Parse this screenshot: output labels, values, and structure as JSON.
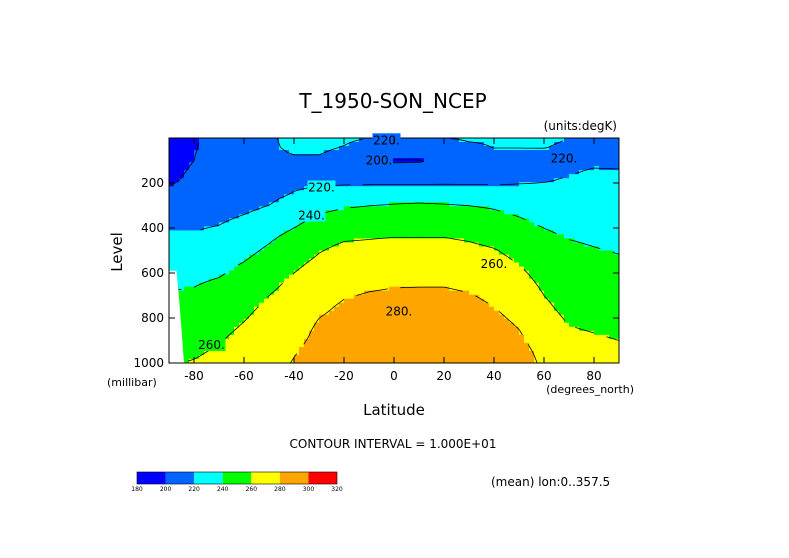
{
  "chart_data": {
    "type": "contour",
    "title": "T_1950-SON_NCEP",
    "units_label": "(units:degK)",
    "xlabel": "Latitude",
    "x_units_label": "(degrees_north)",
    "ylabel": "Level",
    "y_units_label": "(millibar)",
    "xlim": [
      -90,
      90
    ],
    "ylim": [
      1000,
      0
    ],
    "x_ticks": [
      -80,
      -60,
      -40,
      -20,
      0,
      20,
      40,
      60,
      80
    ],
    "y_ticks": [
      200,
      400,
      600,
      800,
      1000
    ],
    "contour_interval_label": "CONTOUR INTERVAL = 1.000E+01",
    "mean_label": "(mean) lon:0..357.5",
    "contour_labels": [
      {
        "text": "220.",
        "lat": -3,
        "level": 10
      },
      {
        "text": "200.",
        "lat": -6,
        "level": 100
      },
      {
        "text": "220.",
        "lat": 68,
        "level": 90
      },
      {
        "text": "220.",
        "lat": -29,
        "level": 220
      },
      {
        "text": "240.",
        "lat": -33,
        "level": 345
      },
      {
        "text": "260.",
        "lat": 40,
        "level": 560
      },
      {
        "text": "280.",
        "lat": 2,
        "level": 770
      },
      {
        "text": "260.",
        "lat": -73,
        "level": 920
      }
    ],
    "bands": [
      {
        "min": 180,
        "max": 200,
        "color": "#0000ff"
      },
      {
        "min": 200,
        "max": 220,
        "color": "#0064ff"
      },
      {
        "min": 220,
        "max": 240,
        "color": "#00ffff"
      },
      {
        "min": 240,
        "max": 260,
        "color": "#00ff00"
      },
      {
        "min": 260,
        "max": 280,
        "color": "#ffff00"
      },
      {
        "min": 280,
        "max": 300,
        "color": "#ffa500"
      },
      {
        "min": 300,
        "max": 320,
        "color": "#ff0000"
      }
    ],
    "colorbar_ticks": [
      "180",
      "200",
      "220",
      "240",
      "260",
      "280",
      "300",
      "320"
    ],
    "field_lats": [
      -90,
      -80,
      -70,
      -60,
      -50,
      -40,
      -30,
      -20,
      -10,
      0,
      10,
      20,
      30,
      40,
      50,
      60,
      70,
      80,
      90
    ],
    "field_levels": [
      0,
      50,
      100,
      150,
      200,
      250,
      300,
      350,
      400,
      450,
      500,
      550,
      600,
      650,
      700,
      750,
      800,
      850,
      900,
      950,
      1000
    ],
    "field": [
      [
        195,
        198,
        206,
        214,
        219,
        222,
        223,
        222,
        220,
        219,
        219,
        220,
        221,
        221,
        221,
        221,
        220,
        219,
        217
      ],
      [
        196,
        199,
        207,
        215,
        219,
        221,
        222,
        219,
        214,
        211,
        211,
        214,
        218,
        220,
        220,
        220,
        219,
        218,
        216
      ],
      [
        197,
        200,
        208,
        215,
        218,
        219,
        218,
        212,
        204,
        198,
        198,
        204,
        212,
        216,
        216,
        217,
        218,
        218,
        217
      ],
      [
        198,
        201,
        209,
        215,
        217,
        217,
        214,
        209,
        208,
        208,
        209,
        211,
        214,
        215,
        215,
        216,
        219,
        221,
        221
      ],
      [
        199,
        202,
        207,
        212,
        215,
        217,
        218,
        218,
        218,
        218,
        218,
        218,
        218,
        218,
        219,
        220,
        222,
        223,
        222
      ],
      [
        203,
        205,
        208,
        212,
        216,
        221,
        225,
        229,
        231,
        233,
        233,
        233,
        232,
        230,
        228,
        226,
        225,
        225,
        224
      ],
      [
        210,
        210,
        212,
        216,
        220,
        227,
        234,
        238,
        240,
        241,
        242,
        241,
        240,
        238,
        234,
        230,
        228,
        227,
        227
      ],
      [
        215,
        215,
        217,
        221,
        226,
        234,
        242,
        246,
        247,
        248,
        248,
        248,
        247,
        244,
        240,
        235,
        232,
        231,
        230
      ],
      [
        219,
        219,
        221,
        226,
        232,
        240,
        248,
        252,
        254,
        255,
        255,
        255,
        253,
        250,
        245,
        240,
        236,
        234,
        233
      ],
      [
        222,
        222,
        225,
        231,
        238,
        247,
        255,
        259,
        260,
        261,
        261,
        261,
        259,
        256,
        250,
        244,
        240,
        238,
        236
      ],
      [
        226,
        226,
        229,
        235,
        243,
        251,
        259,
        264,
        265,
        266,
        266,
        266,
        264,
        261,
        255,
        248,
        243,
        241,
        239
      ],
      [
        230,
        231,
        234,
        240,
        248,
        256,
        263,
        268,
        270,
        271,
        271,
        271,
        269,
        265,
        259,
        251,
        246,
        244,
        242
      ],
      [
        234,
        235,
        238,
        245,
        252,
        260,
        267,
        272,
        274,
        275,
        275,
        275,
        273,
        269,
        263,
        254,
        248,
        246,
        244
      ],
      [
        238,
        239,
        243,
        249,
        256,
        264,
        271,
        276,
        278,
        279,
        279,
        279,
        277,
        273,
        267,
        257,
        250,
        248,
        246
      ],
      [
        241,
        243,
        247,
        253,
        260,
        267,
        274,
        279,
        281,
        282,
        283,
        283,
        281,
        277,
        271,
        260,
        253,
        251,
        249
      ],
      [
        244,
        246,
        250,
        256,
        263,
        270,
        277,
        282,
        284,
        285,
        286,
        286,
        284,
        280,
        274,
        263,
        255,
        253,
        251
      ],
      [
        247,
        249,
        253,
        259,
        266,
        273,
        280,
        284,
        286,
        287,
        288,
        289,
        287,
        283,
        277,
        266,
        258,
        256,
        254
      ],
      [
        250,
        252,
        256,
        262,
        268,
        275,
        282,
        286,
        288,
        289,
        290,
        291,
        290,
        286,
        280,
        269,
        261,
        259,
        257
      ],
      [
        253,
        255,
        259,
        265,
        270,
        277,
        283,
        288,
        290,
        291,
        292,
        293,
        292,
        289,
        283,
        272,
        264,
        262,
        260
      ],
      [
        256,
        258,
        262,
        267,
        272,
        279,
        285,
        290,
        292,
        293,
        294,
        295,
        294,
        292,
        286,
        275,
        267,
        265,
        263
      ],
      [
        259,
        261,
        264,
        269,
        274,
        281,
        287,
        292,
        294,
        295,
        296,
        297,
        296,
        294,
        288,
        277,
        270,
        268,
        266
      ]
    ],
    "missing_below_surface": [
      {
        "lat": -90,
        "level_from": 590
      },
      {
        "lat": -87,
        "level_from": 590
      },
      {
        "lat": -86,
        "level_from": 710
      },
      {
        "lat": -85,
        "level_from": 850
      },
      {
        "lat": -84,
        "level_from": 1000
      }
    ]
  }
}
